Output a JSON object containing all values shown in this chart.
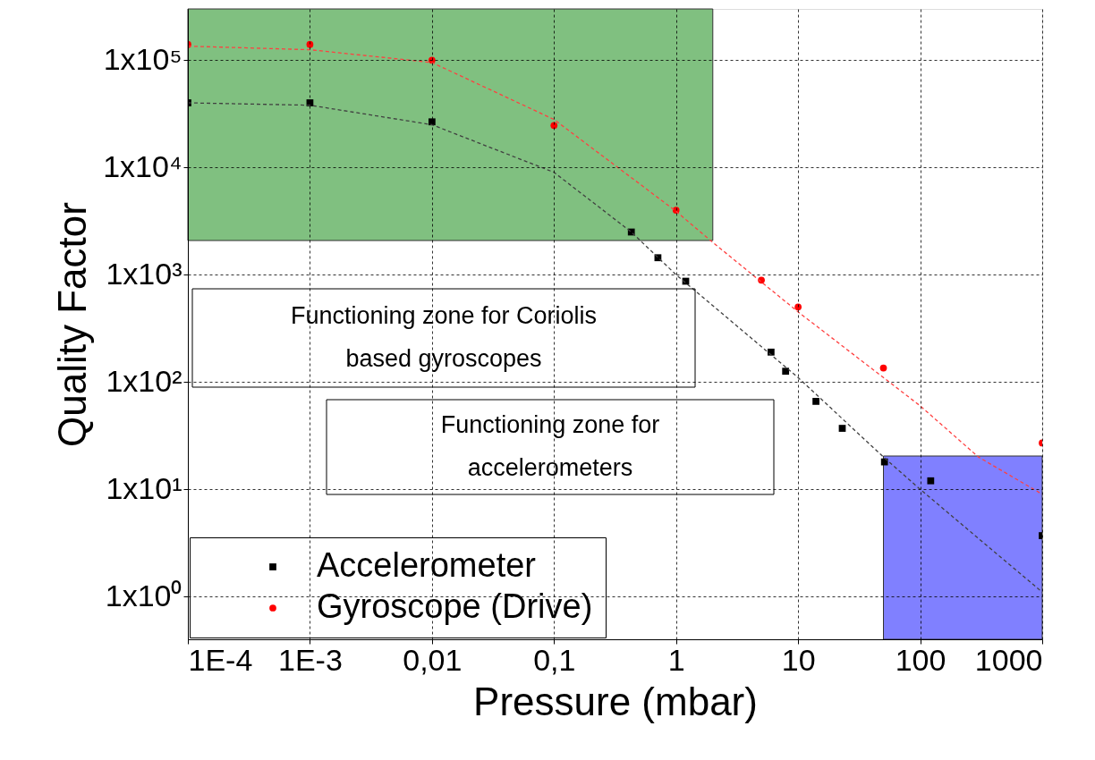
{
  "chart_data": {
    "type": "scatter",
    "xlabel": "Pressure (mbar)",
    "ylabel": "Quality Factor",
    "log": "xy",
    "grid": true,
    "legend": "bottom left",
    "xlim": [
      0.0001,
      1000
    ],
    "ylim": [
      0.4,
      300000
    ],
    "xticks": [
      {
        "value": 0.0001,
        "label": "1E-4"
      },
      {
        "value": 0.001,
        "label": "1E-3"
      },
      {
        "value": 0.01,
        "label": "0,01"
      },
      {
        "value": 0.1,
        "label": "0,1"
      },
      1,
      10,
      100,
      {
        "value": 1000,
        "label": "1000"
      }
    ],
    "yticks": [
      {
        "value": 1,
        "label": "1x10⁰"
      },
      {
        "value": 10,
        "label": "1x10¹"
      },
      {
        "value": 100,
        "label": "1x10²"
      },
      {
        "value": 1000,
        "label": "1x10³"
      },
      {
        "value": 10000,
        "label": "1x10⁴"
      },
      {
        "value": 100000,
        "label": "1x10⁵"
      }
    ],
    "series": [
      {
        "name": "Accelerometer",
        "color": "#000000",
        "marker": "square",
        "x": [
          0.0001,
          0.001,
          0.01,
          0.43,
          0.71,
          1.2,
          6,
          7.9,
          14,
          23,
          51,
          122,
          1000
        ],
        "values": [
          40000,
          40000,
          26600,
          2500,
          1440,
          870,
          190,
          126,
          66,
          37,
          18,
          12,
          3.7
        ]
      },
      {
        "name": "Gyroscope (Drive)",
        "color": "#ff0000",
        "marker": "circle",
        "x": [
          0.0001,
          0.001,
          0.01,
          0.1,
          1,
          5,
          10,
          50,
          1000
        ],
        "values": [
          140000,
          140000,
          100000,
          24600,
          4000,
          890,
          500,
          135,
          27
        ]
      },
      {
        "type": "line",
        "color": "#404040",
        "line_style": "dashed",
        "x": [
          0.0001,
          0.001,
          0.01,
          0.1,
          0.43,
          1,
          10,
          50,
          100,
          1000
        ],
        "values": [
          40000,
          38000,
          25000,
          9000,
          2500,
          1000,
          110,
          20,
          10,
          1.1
        ]
      },
      {
        "type": "line",
        "color": "#ff4040",
        "line_style": "dashed",
        "x": [
          0.0001,
          0.001,
          0.01,
          0.1,
          1,
          2,
          10,
          100,
          300,
          1000
        ],
        "values": [
          135000,
          125000,
          95000,
          28000,
          3900,
          2000,
          450,
          60,
          20,
          9
        ]
      }
    ],
    "bands": [
      {
        "axis": "x",
        "from": 0.0001,
        "to": 2,
        "color": "#80c080"
      },
      {
        "axis": "x",
        "from": 50,
        "to": 1000,
        "color": "#8080ff"
      }
    ],
    "annotations": [
      "Functioning zone for Coriolis based gyroscopes",
      "Functioning zone for accelerometers"
    ]
  }
}
